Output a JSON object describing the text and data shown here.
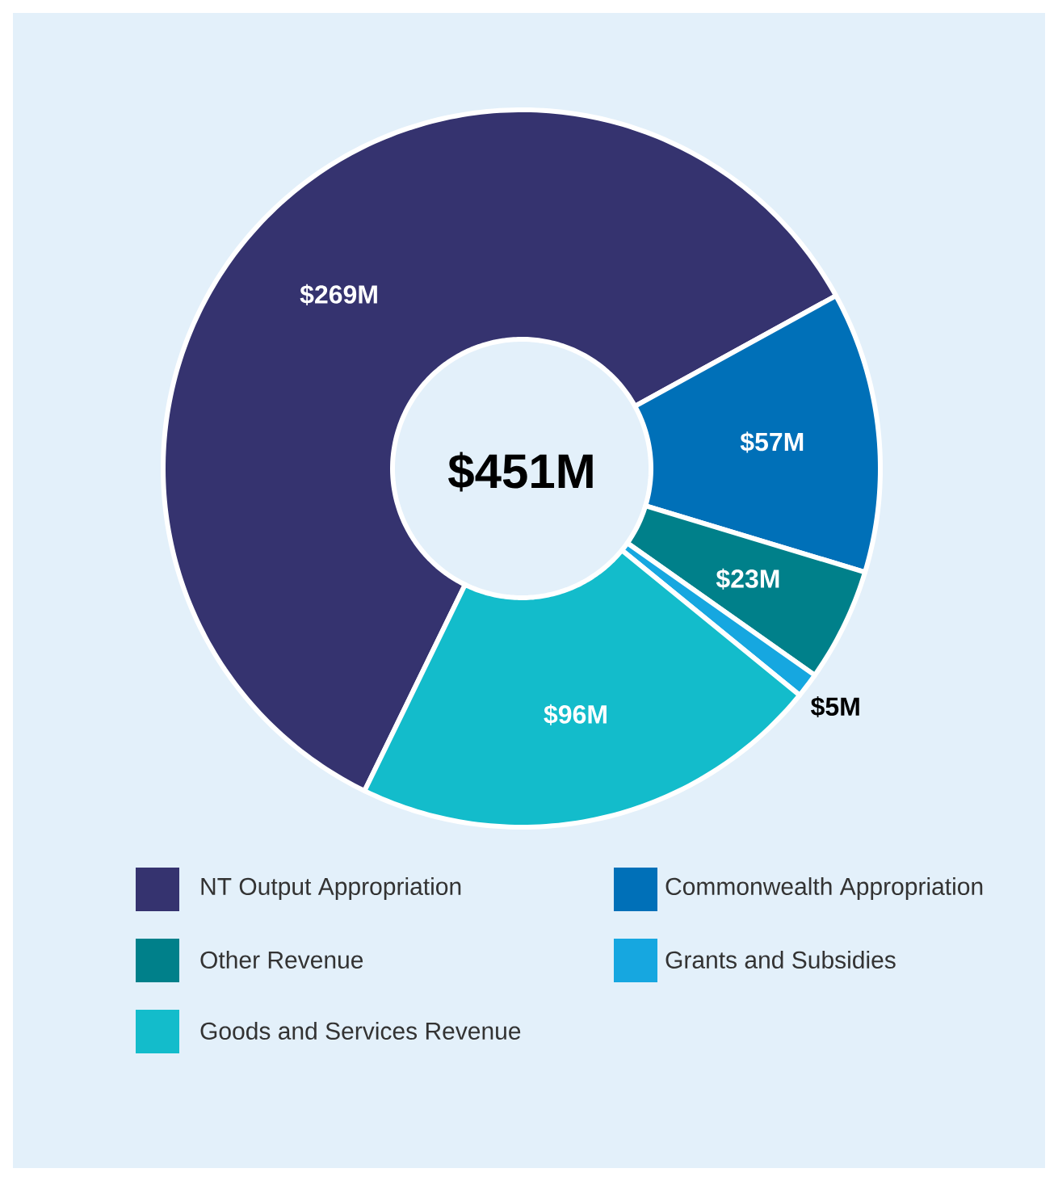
{
  "chart_data": {
    "type": "donut",
    "categories": [
      "NT Output Appropriation",
      "Commonwealth Appropriation",
      "Other Revenue",
      "Grants and Subsidies",
      "Goods and Services Revenue"
    ],
    "values": [
      269,
      57,
      23,
      5,
      96
    ],
    "colors": [
      "#35336f",
      "#0070b8",
      "#00808a",
      "#16a7e0",
      "#13bccb"
    ],
    "value_labels": [
      "$269M",
      "$57M",
      "$23M",
      "$5M",
      "$96M"
    ],
    "annotations": [
      "$451M"
    ],
    "legend": "bottom"
  }
}
